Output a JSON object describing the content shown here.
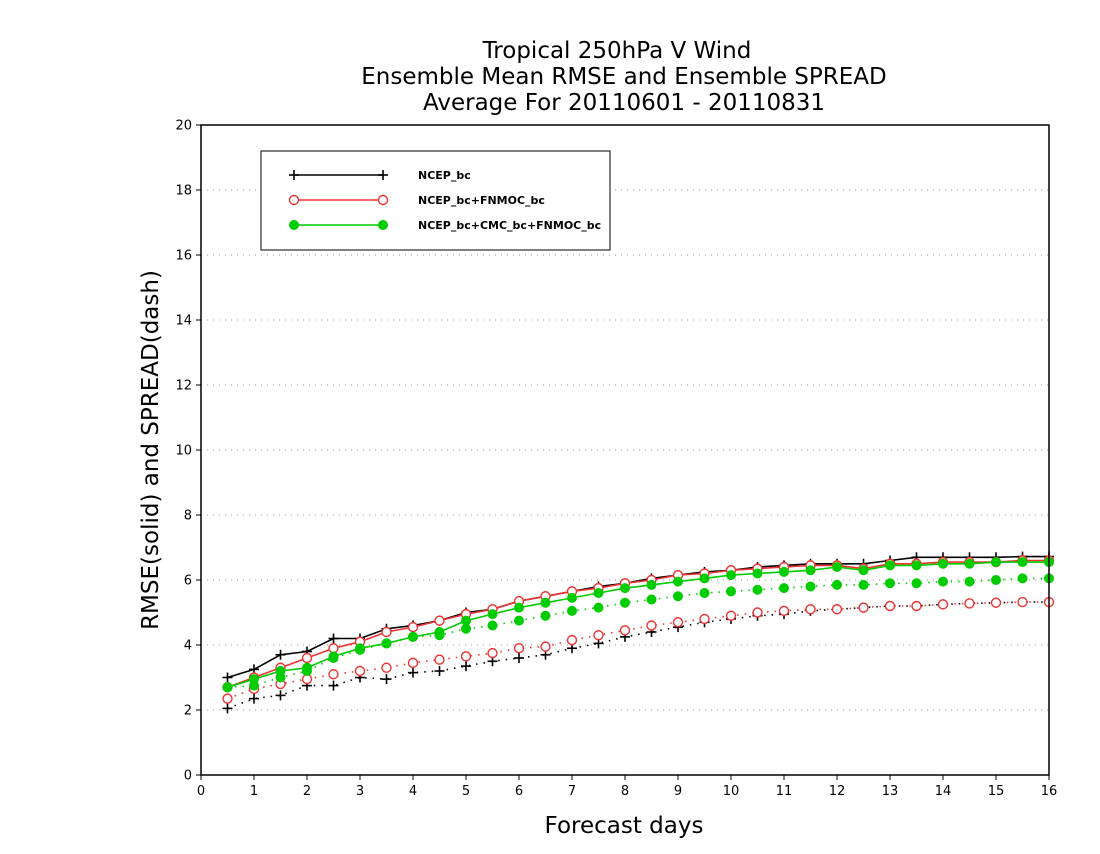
{
  "chart_data": {
    "type": "line",
    "title": [
      "Tropical 250hPa V Wind",
      "Ensemble Mean RMSE and Ensemble SPREAD",
      "Average For 20110601 - 20110831"
    ],
    "xlabel": "Forecast days",
    "ylabel": "RMSE(solid) and SPREAD(dash)",
    "xlim": [
      0,
      16
    ],
    "ylim": [
      0,
      20
    ],
    "xticks": [
      "0",
      "1",
      "2",
      "3",
      "4",
      "5",
      "6",
      "7",
      "8",
      "9",
      "10",
      "11",
      "12",
      "13",
      "14",
      "15",
      "16"
    ],
    "yticks": [
      "0",
      "2",
      "4",
      "6",
      "8",
      "10",
      "12",
      "14",
      "16",
      "18",
      "20"
    ],
    "grid": "horizontal dotted",
    "legend_position": "top-left",
    "x": [
      0.5,
      1,
      1.5,
      2,
      2.5,
      3,
      3.5,
      4,
      4.5,
      5,
      5.5,
      6,
      6.5,
      7,
      7.5,
      8,
      8.5,
      9,
      9.5,
      10,
      10.5,
      11,
      11.5,
      12,
      12.5,
      13,
      13.5,
      14,
      14.5,
      15,
      15.5,
      16
    ],
    "series": [
      {
        "name": "NCEP_bc",
        "color": "#000000",
        "marker": "plus",
        "rmse": [
          3.0,
          3.25,
          3.7,
          3.8,
          4.2,
          4.2,
          4.5,
          4.6,
          4.75,
          5.0,
          5.1,
          5.35,
          5.5,
          5.65,
          5.8,
          5.9,
          6.05,
          6.15,
          6.25,
          6.3,
          6.4,
          6.45,
          6.5,
          6.5,
          6.5,
          6.6,
          6.7,
          6.7,
          6.7,
          6.7,
          6.72,
          6.72
        ],
        "spread": [
          2.05,
          2.35,
          2.45,
          2.75,
          2.75,
          3.0,
          2.95,
          3.15,
          3.2,
          3.35,
          3.5,
          3.6,
          3.7,
          3.9,
          4.05,
          4.25,
          4.4,
          4.55,
          4.7,
          4.8,
          4.9,
          4.95,
          5.05,
          5.1,
          5.15,
          5.2,
          5.2,
          5.25,
          5.28,
          5.3,
          5.32,
          5.32
        ]
      },
      {
        "name": "NCEP_bc+FNMOC_bc",
        "color": "#ee3333",
        "marker": "open-circle",
        "rmse": [
          2.7,
          3.0,
          3.3,
          3.6,
          3.9,
          4.1,
          4.4,
          4.55,
          4.75,
          4.95,
          5.1,
          5.35,
          5.5,
          5.65,
          5.75,
          5.9,
          6.0,
          6.15,
          6.2,
          6.3,
          6.35,
          6.4,
          6.45,
          6.45,
          6.35,
          6.5,
          6.5,
          6.55,
          6.55,
          6.55,
          6.6,
          6.6
        ],
        "spread": [
          2.35,
          2.65,
          2.8,
          2.95,
          3.1,
          3.2,
          3.3,
          3.45,
          3.55,
          3.65,
          3.75,
          3.9,
          3.95,
          4.15,
          4.3,
          4.45,
          4.6,
          4.7,
          4.8,
          4.9,
          5.0,
          5.05,
          5.1,
          5.1,
          5.15,
          5.2,
          5.2,
          5.25,
          5.28,
          5.3,
          5.32,
          5.32
        ]
      },
      {
        "name": "NCEP_bc+CMC_bc+FNMOC_bc",
        "color": "#00cc00",
        "marker": "filled-circle",
        "rmse": [
          2.7,
          2.95,
          3.2,
          3.3,
          3.65,
          3.9,
          4.05,
          4.25,
          4.4,
          4.75,
          4.95,
          5.15,
          5.3,
          5.45,
          5.6,
          5.75,
          5.85,
          5.95,
          6.05,
          6.15,
          6.2,
          6.25,
          6.3,
          6.4,
          6.3,
          6.45,
          6.45,
          6.5,
          6.5,
          6.55,
          6.55,
          6.55
        ],
        "spread": [
          2.7,
          2.75,
          3.0,
          3.2,
          3.6,
          3.85,
          4.05,
          4.25,
          4.3,
          4.5,
          4.6,
          4.75,
          4.9,
          5.05,
          5.15,
          5.3,
          5.4,
          5.5,
          5.6,
          5.65,
          5.7,
          5.75,
          5.8,
          5.85,
          5.85,
          5.9,
          5.9,
          5.95,
          5.95,
          6.0,
          6.05,
          6.05
        ]
      }
    ]
  }
}
